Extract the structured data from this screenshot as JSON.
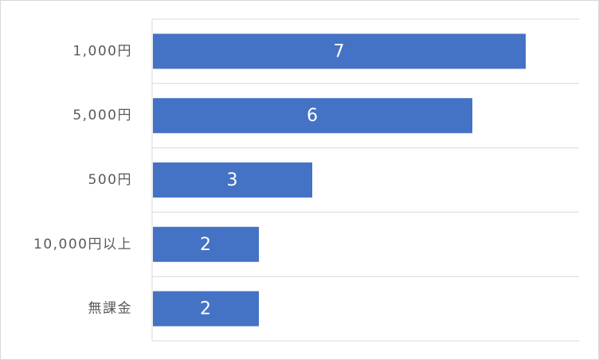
{
  "chart_data": {
    "type": "bar",
    "orientation": "horizontal",
    "categories": [
      "1,000円",
      "5,000円",
      "500円",
      "10,000円以上",
      "無課金"
    ],
    "values": [
      7,
      6,
      3,
      2,
      2
    ],
    "xlim": [
      0,
      8
    ],
    "grid": true,
    "legend": "none",
    "colors": {
      "bar": "#4472C4",
      "grid": "#d9d9d9",
      "label": "#595959"
    }
  }
}
